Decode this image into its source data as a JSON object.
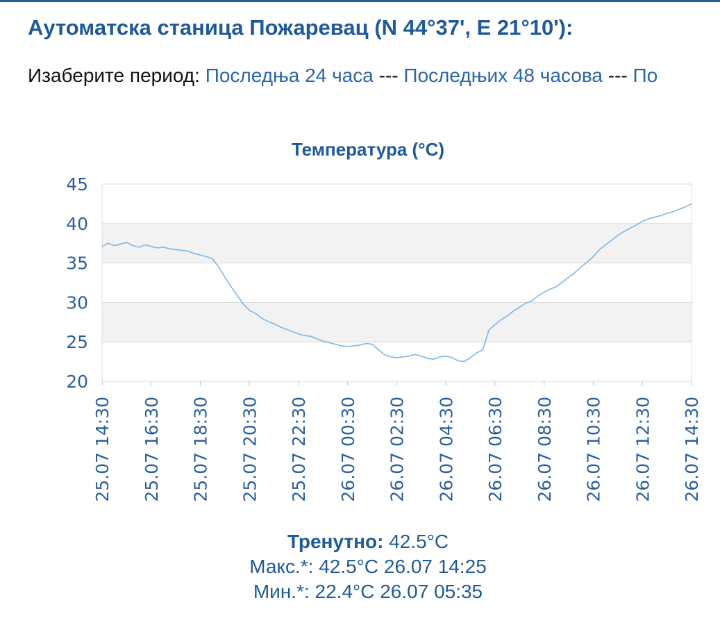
{
  "header": {
    "station_title": "Аутоматска станица Пожаревац (N 44°37', E 21°10'):"
  },
  "period": {
    "prompt": "Изаберите период:",
    "separator": "---",
    "links": [
      "Последња 24 часа",
      "Последњих 48 часова",
      "По"
    ]
  },
  "chart_data": {
    "type": "line",
    "title": "Температура (°C)",
    "xlabel": "",
    "ylabel": "",
    "ylim": [
      20,
      45
    ],
    "yticks": [
      20,
      25,
      30,
      35,
      40,
      45
    ],
    "xlim": [
      0,
      24
    ],
    "grid": true,
    "x_tick_labels": [
      "25.07 14:30",
      "25.07 16:30",
      "25.07 18:30",
      "25.07 20:30",
      "25.07 22:30",
      "26.07 00:30",
      "26.07 02:30",
      "26.07 04:30",
      "26.07 06:30",
      "26.07 08:30",
      "26.07 10:30",
      "26.07 12:30",
      "26.07 14:30"
    ],
    "x_tick_positions": [
      0,
      2,
      4,
      6,
      8,
      10,
      12,
      14,
      16,
      18,
      20,
      22,
      24
    ],
    "series": [
      {
        "color": "#7cb5ec",
        "x": [
          0,
          0.25,
          0.5,
          0.75,
          1.0,
          1.25,
          1.5,
          1.75,
          2.0,
          2.25,
          2.5,
          2.75,
          3.0,
          3.25,
          3.5,
          3.75,
          4.0,
          4.25,
          4.5,
          4.75,
          5.0,
          5.25,
          5.5,
          5.75,
          6.0,
          6.25,
          6.5,
          6.75,
          7.0,
          7.25,
          7.5,
          7.75,
          8.0,
          8.25,
          8.5,
          8.75,
          9.0,
          9.25,
          9.5,
          9.75,
          10.0,
          10.25,
          10.5,
          10.75,
          11.0,
          11.25,
          11.5,
          11.75,
          12.0,
          12.25,
          12.5,
          12.75,
          13.0,
          13.25,
          13.5,
          13.75,
          14.0,
          14.25,
          14.5,
          14.75,
          15.0,
          15.25,
          15.5,
          15.75,
          16.0,
          16.25,
          16.5,
          16.75,
          17.0,
          17.25,
          17.5,
          17.75,
          18.0,
          18.25,
          18.5,
          18.75,
          19.0,
          19.25,
          19.5,
          19.75,
          20.0,
          20.25,
          20.5,
          20.75,
          21.0,
          21.25,
          21.5,
          21.75,
          22.0,
          22.25,
          22.5,
          22.75,
          23.0,
          23.25,
          23.5,
          23.75,
          24.0
        ],
        "values": [
          37.1,
          37.5,
          37.2,
          37.4,
          37.6,
          37.2,
          37.0,
          37.3,
          37.1,
          36.9,
          37.0,
          36.8,
          36.7,
          36.6,
          36.5,
          36.2,
          36.0,
          35.8,
          35.5,
          34.5,
          33.2,
          32.0,
          30.9,
          29.8,
          29.0,
          28.6,
          28.0,
          27.6,
          27.3,
          26.9,
          26.6,
          26.3,
          26.0,
          25.8,
          25.7,
          25.4,
          25.1,
          24.9,
          24.7,
          24.5,
          24.4,
          24.5,
          24.6,
          24.8,
          24.7,
          24.0,
          23.4,
          23.1,
          23.0,
          23.1,
          23.2,
          23.4,
          23.2,
          22.9,
          22.8,
          23.1,
          23.2,
          23.0,
          22.6,
          22.5,
          23.0,
          23.6,
          24.0,
          26.5,
          27.2,
          27.8,
          28.3,
          28.9,
          29.4,
          29.9,
          30.2,
          30.8,
          31.3,
          31.7,
          32.0,
          32.6,
          33.2,
          33.8,
          34.5,
          35.1,
          35.8,
          36.7,
          37.3,
          37.9,
          38.5,
          39.0,
          39.4,
          39.8,
          40.3,
          40.6,
          40.8,
          41.0,
          41.3,
          41.5,
          41.8,
          42.1,
          42.5
        ]
      }
    ]
  },
  "stats": {
    "current_label": "Тренутно:",
    "current_value": "42.5°C",
    "max_text": "Макс.*: 42.5°C 26.07 14:25",
    "min_text": "Мин.*: 22.4°C 26.07 05:35"
  }
}
